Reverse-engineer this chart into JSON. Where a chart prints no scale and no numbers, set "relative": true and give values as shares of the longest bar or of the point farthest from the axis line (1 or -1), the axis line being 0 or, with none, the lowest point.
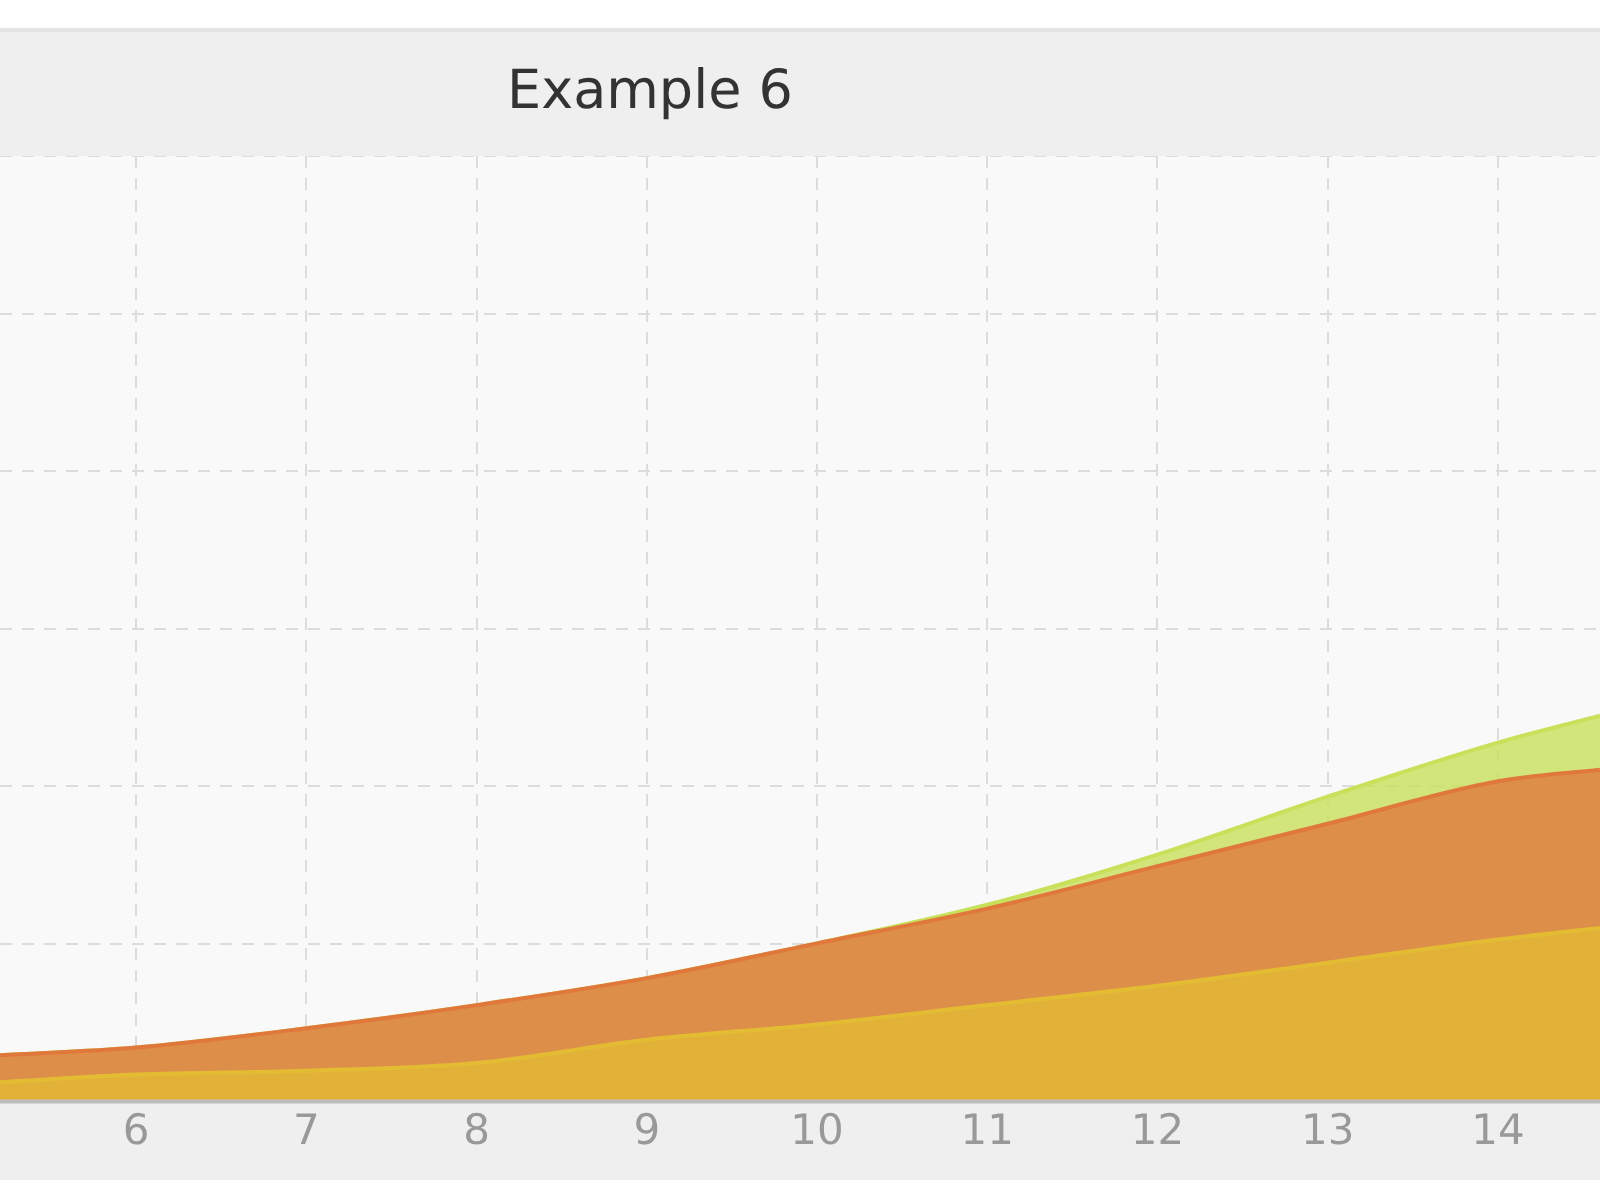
{
  "chart_data": {
    "type": "area",
    "title": "Example 6",
    "relative": true,
    "grid": true,
    "x": [
      5.2,
      6,
      7,
      8,
      9,
      10,
      11,
      12,
      13,
      14,
      14.6
    ],
    "xlim": [
      5.2,
      14.6
    ],
    "xticks": [
      6,
      7,
      8,
      9,
      10,
      11,
      12,
      13,
      14
    ],
    "series": [
      {
        "color": "#c8e05a",
        "values": [
          0.12,
          0.14,
          0.19,
          0.25,
          0.32,
          0.41,
          0.51,
          0.64,
          0.79,
          0.93,
          1
        ]
      },
      {
        "color": "#e0783c",
        "values": [
          0.12,
          0.14,
          0.19,
          0.25,
          0.32,
          0.41,
          0.5,
          0.61,
          0.72,
          0.83,
          0.86
        ]
      },
      {
        "color": "#e4bc34",
        "values": [
          0.05,
          0.07,
          0.08,
          0.1,
          0.16,
          0.2,
          0.25,
          0.3,
          0.36,
          0.42,
          0.45
        ]
      }
    ]
  }
}
